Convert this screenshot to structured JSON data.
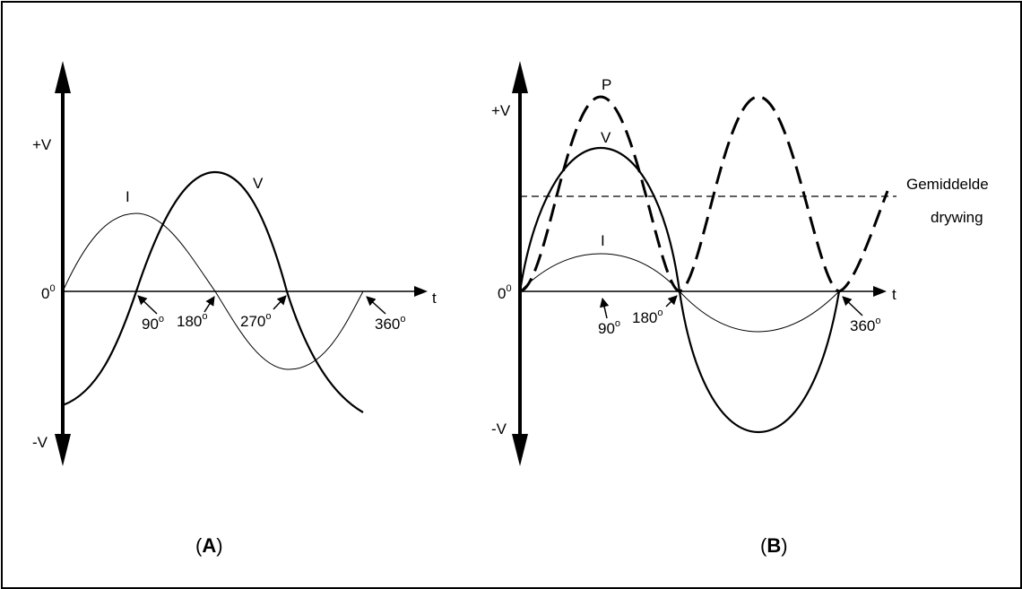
{
  "panel_a": {
    "label_open": "(",
    "label_letter": "A",
    "label_close": ")",
    "y_pos": "+V",
    "y_neg": "-V",
    "origin": "0",
    "origin_sup": "0",
    "t_label": "t",
    "curve_i": "I",
    "curve_v": "V",
    "angles": [
      {
        "num": "90",
        "sup": "o"
      },
      {
        "num": "180",
        "sup": "o"
      },
      {
        "num": "270",
        "sup": "o"
      },
      {
        "num": "360",
        "sup": "o"
      }
    ]
  },
  "panel_b": {
    "label_open": "(",
    "label_letter": "B",
    "label_close": ")",
    "y_pos": "+V",
    "y_neg": "-V",
    "origin": "0",
    "origin_sup": "0",
    "t_label": "t",
    "curve_p": "P",
    "curve_v": "V",
    "curve_i": "I",
    "avg_line1": "Gemiddelde",
    "avg_line2": "drywing",
    "angles": [
      {
        "num": "90",
        "sup": "o"
      },
      {
        "num": "180",
        "sup": "o"
      },
      {
        "num": "360",
        "sup": "o"
      }
    ]
  }
}
